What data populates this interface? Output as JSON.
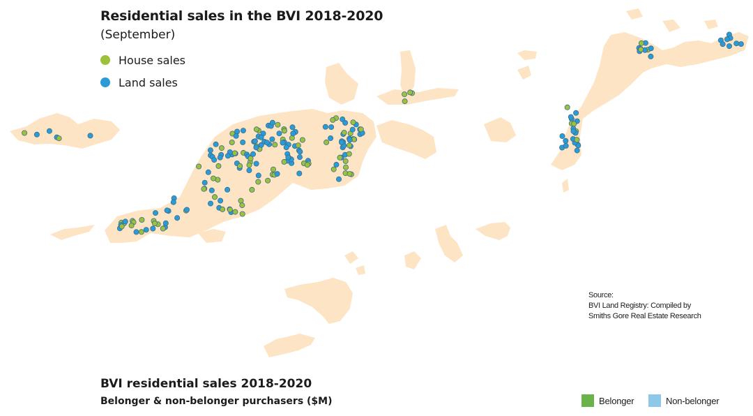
{
  "map": {
    "title": "Residential sales in the BVI 2018-2020",
    "subtitle": "(September)",
    "legend": {
      "house": {
        "label": "House sales",
        "color": "#9dc13b",
        "icon": "green-dot-icon"
      },
      "land": {
        "label": "Land sales",
        "color": "#2b9bd8",
        "icon": "blue-dot-icon"
      }
    },
    "land_color": "#fde4c4",
    "stroke_color": "#3a6e8a"
  },
  "source": {
    "heading": "Source:",
    "line1": "BVI Land Registry: Compiled by",
    "line2": "Smiths Gore Real Estate Research"
  },
  "chart": {
    "title": "BVI residential sales 2018-2020",
    "subtitle": "Belonger & non-belonger purchasers ($M)",
    "legend": {
      "belonger": {
        "label": "Belonger",
        "color": "#6ab34a"
      },
      "non_belonger": {
        "label": "Non-belonger",
        "color": "#8ec8e8"
      }
    }
  }
}
